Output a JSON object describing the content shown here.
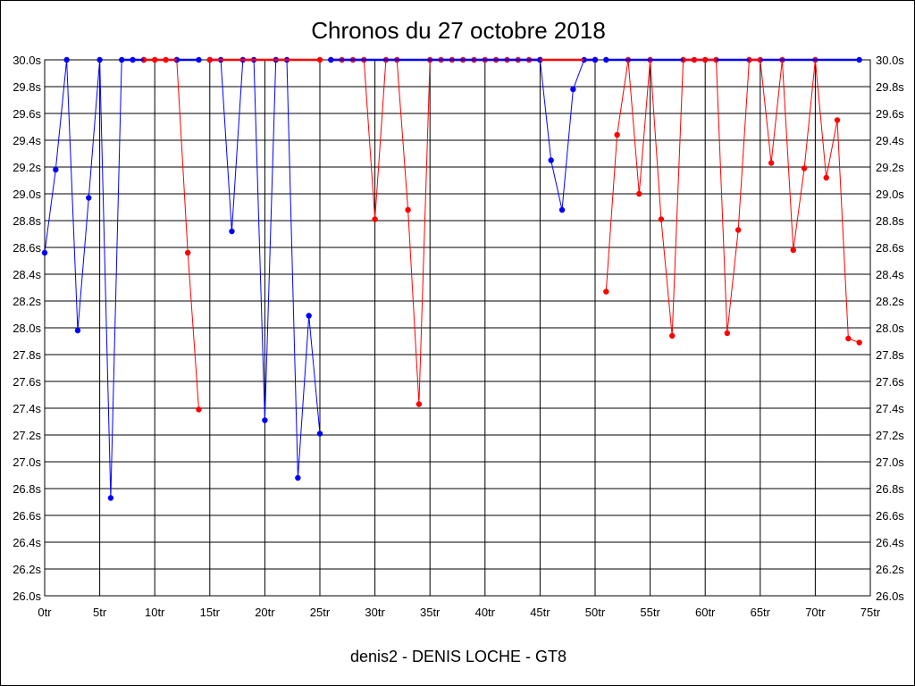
{
  "chart_data": {
    "type": "line",
    "title": "Chronos du 27 octobre 2018",
    "footer": "denis2 - DENIS LOCHE - GT8",
    "xlabel": "",
    "ylabel": "",
    "x_suffix": "tr",
    "y_suffix": "s",
    "xlim": [
      0,
      75
    ],
    "ylim": [
      26.0,
      30.0
    ],
    "x_tick_step": 5,
    "y_tick_step": 0.2,
    "grid": true,
    "colors": {
      "blue": "#0000ff",
      "red": "#ff0000",
      "grid": "#000000"
    },
    "segments": [
      {
        "color": "blue",
        "points": [
          [
            0,
            28.56
          ],
          [
            1,
            29.18
          ],
          [
            2,
            30.0
          ],
          [
            3,
            27.98
          ],
          [
            4,
            28.97
          ],
          [
            5,
            30.0
          ],
          [
            6,
            26.73
          ],
          [
            7,
            30.0
          ],
          [
            8,
            30.0
          ],
          [
            9,
            30.0
          ]
        ]
      },
      {
        "color": "red",
        "points": [
          [
            9,
            30.0
          ],
          [
            10,
            30.0
          ],
          [
            11,
            30.0
          ],
          [
            12,
            30.0
          ],
          [
            13,
            28.56
          ],
          [
            14,
            27.39
          ]
        ]
      },
      {
        "color": "blue",
        "points": [
          [
            12,
            30.0
          ],
          [
            14,
            30.0
          ]
        ]
      },
      {
        "color": "blue",
        "points": [
          [
            15,
            30.0
          ],
          [
            16,
            30.0
          ],
          [
            17,
            28.72
          ],
          [
            18,
            30.0
          ],
          [
            19,
            30.0
          ],
          [
            20,
            27.31
          ],
          [
            21,
            30.0
          ],
          [
            22,
            30.0
          ],
          [
            23,
            26.88
          ],
          [
            24,
            28.09
          ],
          [
            25,
            27.21
          ]
        ]
      },
      {
        "color": "red",
        "points": [
          [
            15,
            30.0
          ],
          [
            25,
            30.0
          ]
        ]
      },
      {
        "color": "red",
        "points": [
          [
            26,
            30.0
          ],
          [
            27,
            30.0
          ],
          [
            28,
            30.0
          ],
          [
            29,
            30.0
          ],
          [
            30,
            28.81
          ],
          [
            31,
            30.0
          ],
          [
            32,
            30.0
          ],
          [
            33,
            28.88
          ],
          [
            34,
            27.43
          ],
          [
            35,
            30.0
          ],
          [
            36,
            30.0
          ],
          [
            37,
            30.0
          ],
          [
            38,
            30.0
          ],
          [
            39,
            30.0
          ],
          [
            40,
            30.0
          ],
          [
            41,
            30.0
          ],
          [
            42,
            30.0
          ],
          [
            43,
            30.0
          ],
          [
            44,
            30.0
          ],
          [
            45,
            30.0
          ],
          [
            50,
            30.0
          ]
        ]
      },
      {
        "color": "blue",
        "points": [
          [
            26,
            30.0
          ],
          [
            45,
            30.0
          ],
          [
            46,
            29.25
          ],
          [
            47,
            28.88
          ],
          [
            48,
            29.78
          ],
          [
            49,
            30.0
          ],
          [
            50,
            30.0
          ]
        ]
      },
      {
        "color": "blue",
        "points": [
          [
            51,
            30.0
          ],
          [
            74,
            30.0
          ]
        ]
      },
      {
        "color": "red",
        "points": [
          [
            51,
            28.27
          ],
          [
            52,
            29.44
          ],
          [
            53,
            30.0
          ],
          [
            54,
            29.0
          ],
          [
            55,
            30.0
          ],
          [
            56,
            28.81
          ],
          [
            57,
            27.94
          ],
          [
            58,
            30.0
          ],
          [
            59,
            30.0
          ],
          [
            60,
            30.0
          ],
          [
            61,
            30.0
          ],
          [
            62,
            27.96
          ],
          [
            63,
            28.73
          ],
          [
            64,
            30.0
          ],
          [
            65,
            30.0
          ],
          [
            66,
            29.23
          ],
          [
            67,
            30.0
          ],
          [
            68,
            28.58
          ],
          [
            69,
            29.19
          ],
          [
            70,
            30.0
          ],
          [
            71,
            29.12
          ],
          [
            72,
            29.55
          ],
          [
            73,
            27.92
          ],
          [
            74,
            27.89
          ]
        ]
      }
    ]
  }
}
